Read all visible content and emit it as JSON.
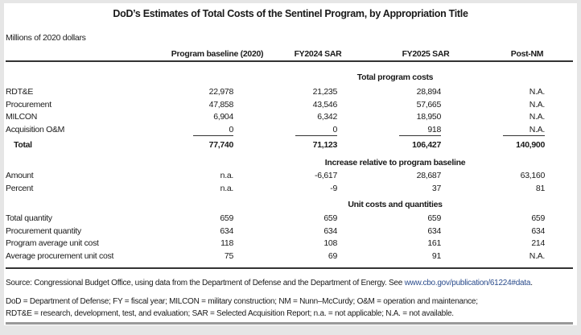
{
  "title": "DoD’s Estimates of Total Costs of the Sentinel Program, by Appropriation Title",
  "units": "Millions of 2020 dollars",
  "columns": [
    "Program baseline (2020)",
    "FY2024 SAR",
    "FY2025 SAR",
    "Post-NM"
  ],
  "sections": [
    {
      "heading": "Total program costs",
      "rows": [
        {
          "label": "RDT&E",
          "values": [
            "22,978",
            "21,235",
            "28,894",
            "N.A."
          ]
        },
        {
          "label": "Procurement",
          "values": [
            "47,858",
            "43,546",
            "57,665",
            "N.A."
          ]
        },
        {
          "label": "MILCON",
          "values": [
            "6,904",
            "6,342",
            "18,950",
            "N.A."
          ]
        },
        {
          "label": "Acquisition O&M",
          "values": [
            "0",
            "0",
            "918",
            "N.A."
          ]
        }
      ],
      "total": {
        "label": "Total",
        "values": [
          "77,740",
          "71,123",
          "106,427",
          "140,900"
        ]
      }
    },
    {
      "heading": "Increase relative to program baseline",
      "rows": [
        {
          "label": "Amount",
          "values": [
            "n.a.",
            "-6,617",
            "28,687",
            "63,160"
          ]
        },
        {
          "label": "Percent",
          "values": [
            "n.a.",
            "-9",
            "37",
            "81"
          ]
        }
      ]
    },
    {
      "heading": "Unit costs and quantities",
      "rows": [
        {
          "label": "Total quantity",
          "values": [
            "659",
            "659",
            "659",
            "659"
          ]
        },
        {
          "label": "Procurement quantity",
          "values": [
            "634",
            "634",
            "634",
            "634"
          ]
        },
        {
          "label": "Program average unit cost",
          "values": [
            "118",
            "108",
            "161",
            "214"
          ]
        },
        {
          "label": "Average procurement unit cost",
          "values": [
            "75",
            "69",
            "91",
            "N.A."
          ]
        }
      ]
    }
  ],
  "source": {
    "text": "Source: Congressional Budget Office, using data from the Department of Defense and the Department of Energy. See ",
    "link": "www.cbo.gov/publication/61224#data",
    "end": "."
  },
  "notes": [
    "DoD = Department of Defense; FY = fiscal year; MILCON = military construction; NM = Nunn–McCurdy; O&M = operation and maintenance;",
    "RDT&E = research, development, test, and evaluation; SAR = Selected Acquisition Report; n.a. = not applicable; N.A. = not available."
  ],
  "colors": {
    "link": "#2b4c8c",
    "background": "#e6e6e6"
  }
}
